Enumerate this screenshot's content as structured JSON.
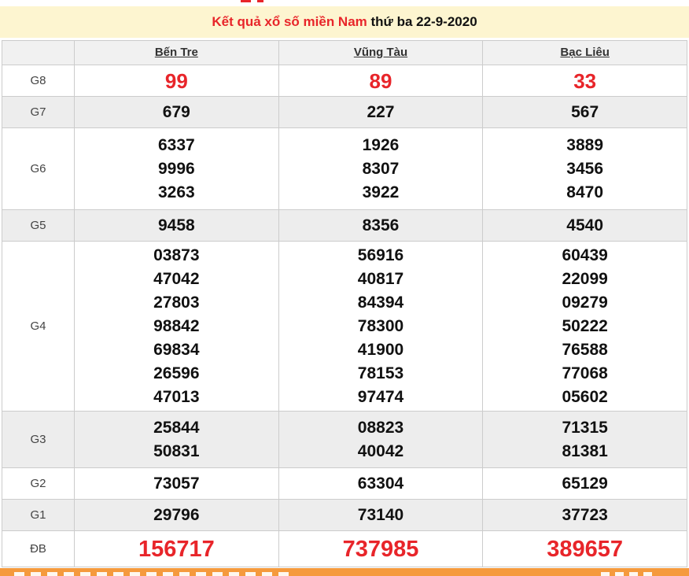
{
  "banner": {
    "title_red": "Kết quả xổ số miền Nam",
    "title_black": " thứ ba 22-9-2020"
  },
  "results": {
    "provinces": [
      "Bến Tre",
      "Vũng Tàu",
      "Bạc Liêu"
    ],
    "prizes": [
      {
        "label": "G8",
        "cols": [
          [
            "99"
          ],
          [
            "89"
          ],
          [
            "33"
          ]
        ]
      },
      {
        "label": "G7",
        "cols": [
          [
            "679"
          ],
          [
            "227"
          ],
          [
            "567"
          ]
        ]
      },
      {
        "label": "G6",
        "cols": [
          [
            "6337",
            "9996",
            "3263"
          ],
          [
            "1926",
            "8307",
            "3922"
          ],
          [
            "3889",
            "3456",
            "8470"
          ]
        ]
      },
      {
        "label": "G5",
        "cols": [
          [
            "9458"
          ],
          [
            "8356"
          ],
          [
            "4540"
          ]
        ]
      },
      {
        "label": "G4",
        "cols": [
          [
            "03873",
            "47042",
            "27803",
            "98842",
            "69834",
            "26596",
            "47013"
          ],
          [
            "56916",
            "40817",
            "84394",
            "78300",
            "41900",
            "78153",
            "97474"
          ],
          [
            "60439",
            "22099",
            "09279",
            "50222",
            "76588",
            "77068",
            "05602"
          ]
        ]
      },
      {
        "label": "G3",
        "cols": [
          [
            "25844",
            "50831"
          ],
          [
            "08823",
            "40042"
          ],
          [
            "71315",
            "81381"
          ]
        ]
      },
      {
        "label": "G2",
        "cols": [
          [
            "73057"
          ],
          [
            "63304"
          ],
          [
            "65129"
          ]
        ]
      },
      {
        "label": "G1",
        "cols": [
          [
            "29796"
          ],
          [
            "73140"
          ],
          [
            "37723"
          ]
        ]
      },
      {
        "label": "ĐB",
        "cols": [
          [
            "156717"
          ],
          [
            "737985"
          ],
          [
            "389657"
          ]
        ]
      }
    ]
  },
  "colors": {
    "accent_red": "#e8252a",
    "banner_bg": "#fdf5d0",
    "row_alt_bg": "#ededed",
    "head_bg": "#f1f1f1",
    "border": "#cccccc",
    "orange_bar": "#f59a3d",
    "header_link": "#333333"
  }
}
